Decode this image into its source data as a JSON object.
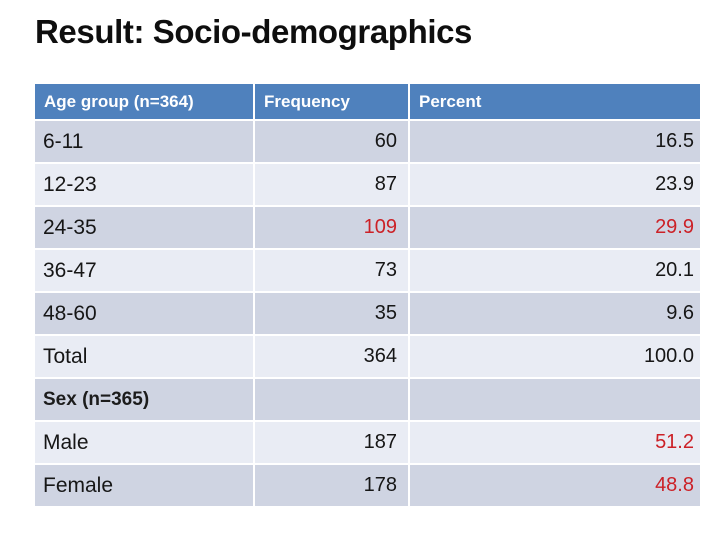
{
  "slide": {
    "title": "Result: Socio-demographics"
  },
  "colors": {
    "header_bg": "#4f81bd",
    "header_text": "#ffffff",
    "band_dark": "#cfd4e2",
    "band_light": "#e9ecf4",
    "text": "#161616",
    "accent_red": "#cc2127"
  },
  "table": {
    "headers": {
      "group": "Age group (n=364)",
      "frequency": "Frequency",
      "percent": "Percent"
    },
    "rows": [
      {
        "label": "6-11",
        "frequency": "60",
        "percent": "16.5"
      },
      {
        "label": "12-23",
        "frequency": "87",
        "percent": "23.9"
      },
      {
        "label": "24-35",
        "frequency": "109",
        "percent": "29.9"
      },
      {
        "label": "36-47",
        "frequency": "73",
        "percent": "20.1"
      },
      {
        "label": "48-60",
        "frequency": "35",
        "percent": "9.6"
      },
      {
        "label": "Total",
        "frequency": "364",
        "percent": "100.0"
      },
      {
        "label": "Sex (n=365)",
        "frequency": "",
        "percent": ""
      },
      {
        "label": "Male",
        "frequency": "187",
        "percent": "51.2"
      },
      {
        "label": "Female",
        "frequency": "178",
        "percent": "48.8"
      }
    ]
  }
}
